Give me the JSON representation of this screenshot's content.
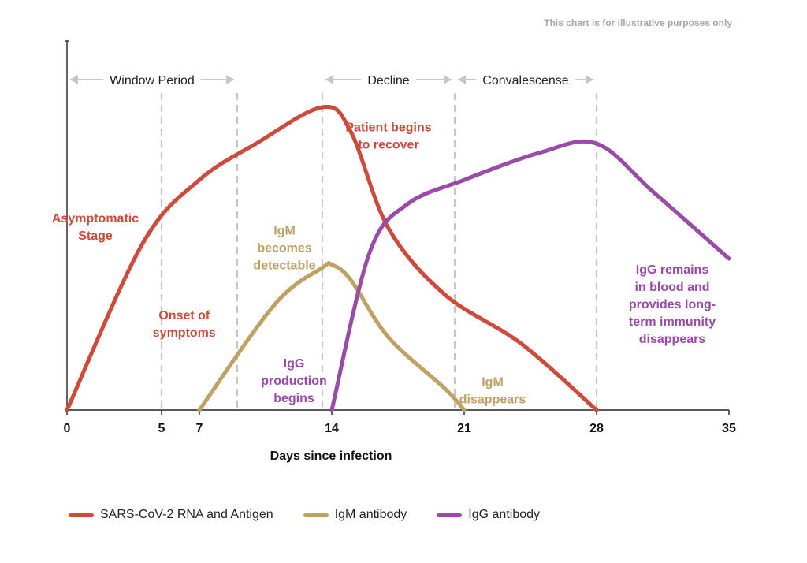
{
  "disclaimer": "This chart is for illustrative purposes only",
  "chart_data": {
    "type": "line",
    "title": "",
    "xlabel": "Days since infection",
    "ylabel": "",
    "xlim": [
      0,
      35
    ],
    "ylim": [
      0,
      100
    ],
    "x_ticks": [
      0,
      5,
      7,
      14,
      21,
      28,
      35
    ],
    "dashed_gridlines_x": [
      5,
      9,
      13.5,
      20.5,
      28
    ],
    "periods": [
      {
        "label": "Window Period",
        "start": 0,
        "end": 9
      },
      {
        "label": "Decline",
        "start": 13.5,
        "end": 20.5
      },
      {
        "label": "Convalescense",
        "start": 20.5,
        "end": 28
      }
    ],
    "series": [
      {
        "name": "SARS-CoV-2 RNA and Antigen",
        "color": "#D04A3B",
        "points": [
          [
            0,
            0
          ],
          [
            4,
            55
          ],
          [
            7,
            76
          ],
          [
            10,
            88
          ],
          [
            13.5,
            100
          ],
          [
            15,
            92
          ],
          [
            17,
            60
          ],
          [
            20,
            38
          ],
          [
            24,
            22
          ],
          [
            28,
            0
          ]
        ]
      },
      {
        "name": "IgM antibody",
        "color": "#C0A063",
        "points": [
          [
            7,
            0
          ],
          [
            11,
            35
          ],
          [
            13.5,
            47
          ],
          [
            14,
            48
          ],
          [
            15,
            43
          ],
          [
            17,
            24
          ],
          [
            20,
            7
          ],
          [
            21,
            0
          ]
        ]
      },
      {
        "name": "IgG antibody",
        "color": "#9A4AA7",
        "points": [
          [
            14,
            0
          ],
          [
            16,
            52
          ],
          [
            18,
            68
          ],
          [
            21,
            76
          ],
          [
            25,
            85
          ],
          [
            28,
            88
          ],
          [
            31,
            72
          ],
          [
            35,
            50
          ]
        ]
      }
    ],
    "annotations": [
      {
        "lines": [
          "Asymptomatic",
          "Stage"
        ],
        "color": "#D04A3B",
        "x": 1.5,
        "y": 62
      },
      {
        "lines": [
          "Patient begins",
          "to recover"
        ],
        "color": "#D04A3B",
        "x": 17,
        "y": 92
      },
      {
        "lines": [
          "Onset of",
          "symptoms"
        ],
        "color": "#D04A3B",
        "x": 6.2,
        "y": 30
      },
      {
        "lines": [
          "IgM",
          "becomes",
          "detectable"
        ],
        "color": "#C0A063",
        "x": 11.5,
        "y": 58
      },
      {
        "lines": [
          "IgG",
          "production",
          "begins"
        ],
        "color": "#9A4AA7",
        "x": 12,
        "y": 14
      },
      {
        "lines": [
          "IgM",
          "disappears"
        ],
        "color": "#C0A063",
        "x": 22.5,
        "y": 8
      },
      {
        "lines": [
          "IgG remains",
          "in blood and",
          "provides long-",
          "term immunity",
          "disappears"
        ],
        "color": "#9A4AA7",
        "x": 32,
        "y": 45
      }
    ]
  }
}
